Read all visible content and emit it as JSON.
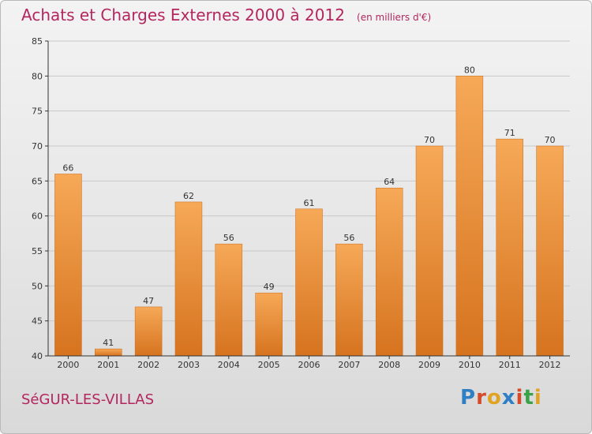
{
  "colors": {
    "title": "#b3265e",
    "bar_light": "#f6a957",
    "bar_dark": "#d6731f",
    "axis": "#333333",
    "grid": "#c8c8c8",
    "logo_letters": [
      "#2e7fc4",
      "#d64a2a",
      "#e0a422",
      "#2e7fc4",
      "#d64a2a",
      "#3aa34a",
      "#e0a422"
    ]
  },
  "header": {
    "title": "Achats et Charges Externes 2000 à 2012",
    "unit": "(en milliers d'€)"
  },
  "footer": {
    "commune": "SéGUR-LES-VILLAS",
    "logo_text": "Proxiti"
  },
  "chart_data": {
    "type": "bar",
    "title": "Achats et Charges Externes 2000 à 2012",
    "subtitle": "(en milliers d'€)",
    "xlabel": "",
    "ylabel": "",
    "categories": [
      "2000",
      "2001",
      "2002",
      "2003",
      "2004",
      "2005",
      "2006",
      "2007",
      "2008",
      "2009",
      "2010",
      "2011",
      "2012"
    ],
    "values": [
      66,
      41,
      47,
      62,
      56,
      49,
      61,
      56,
      64,
      70,
      80,
      71,
      70
    ],
    "ylim": [
      40,
      85
    ],
    "yticks": [
      40,
      45,
      50,
      55,
      60,
      65,
      70,
      75,
      80,
      85
    ],
    "grid": true,
    "data_labels": true
  }
}
